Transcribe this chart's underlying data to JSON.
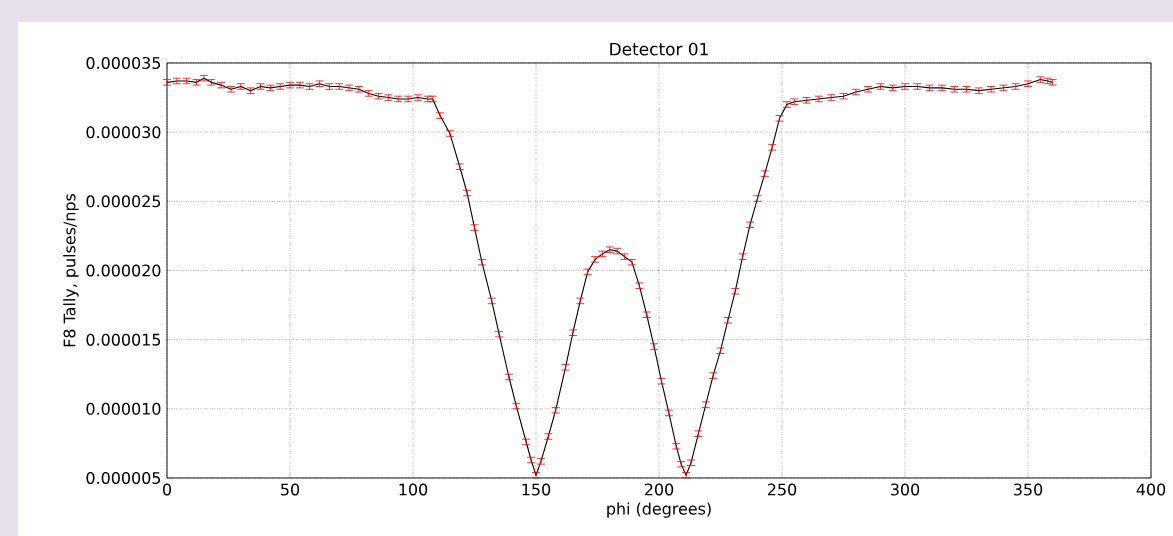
{
  "chart_data": {
    "type": "line",
    "title": "Detector 01",
    "xlabel": "phi (degrees)",
    "ylabel": "F8 Tally, pulses/nps",
    "x": [
      0,
      4,
      8,
      12,
      15,
      18,
      22,
      26,
      30,
      34,
      38,
      42,
      46,
      50,
      54,
      58,
      62,
      66,
      70,
      74,
      78,
      82,
      86,
      90,
      94,
      98,
      102,
      106,
      108,
      111,
      115,
      119,
      122,
      125,
      128,
      132,
      135,
      139,
      142,
      146,
      148,
      150,
      152,
      155,
      158,
      162,
      165,
      168,
      171,
      174,
      177,
      180,
      183,
      186,
      189,
      192,
      195,
      198,
      201,
      204,
      207,
      209,
      211,
      213,
      216,
      219,
      222,
      225,
      228,
      231,
      234,
      237,
      240,
      243,
      246,
      249,
      252,
      255,
      260,
      265,
      270,
      275,
      280,
      285,
      290,
      295,
      300,
      305,
      310,
      315,
      320,
      325,
      330,
      335,
      340,
      345,
      350,
      355,
      358,
      360
    ],
    "series": [
      {
        "color": "#000000",
        "line_style": "solid",
        "marker": "none",
        "values": [
          3.36e-05,
          3.37e-05,
          3.37e-05,
          3.36e-05,
          3.39e-05,
          3.36e-05,
          3.34e-05,
          3.31e-05,
          3.33e-05,
          3.3e-05,
          3.33e-05,
          3.32e-05,
          3.33e-05,
          3.34e-05,
          3.34e-05,
          3.33e-05,
          3.35e-05,
          3.33e-05,
          3.33e-05,
          3.32e-05,
          3.31e-05,
          3.28e-05,
          3.26e-05,
          3.25e-05,
          3.24e-05,
          3.24e-05,
          3.25e-05,
          3.24e-05,
          3.24e-05,
          3.12e-05,
          2.99e-05,
          2.75e-05,
          2.56e-05,
          2.31e-05,
          2.06e-05,
          1.78e-05,
          1.54e-05,
          1.23e-05,
          1.02e-05,
          7.6e-06,
          6.3e-06,
          5.2e-06,
          6.2e-06,
          8e-06,
          9.9e-06,
          1.3e-05,
          1.55e-05,
          1.78e-05,
          1.99e-05,
          2.08e-05,
          2.12e-05,
          2.15e-05,
          2.14e-05,
          2.1e-05,
          2.06e-05,
          1.89e-05,
          1.68e-05,
          1.45e-05,
          1.2e-05,
          9.7e-06,
          7.3e-06,
          6e-06,
          5.2e-06,
          6.1e-06,
          8.2e-06,
          1.03e-05,
          1.24e-05,
          1.42e-05,
          1.64e-05,
          1.85e-05,
          2.1e-05,
          2.33e-05,
          2.52e-05,
          2.7e-05,
          2.89e-05,
          3.1e-05,
          3.2e-05,
          3.22e-05,
          3.23e-05,
          3.24e-05,
          3.25e-05,
          3.26e-05,
          3.29e-05,
          3.31e-05,
          3.33e-05,
          3.32e-05,
          3.33e-05,
          3.33e-05,
          3.32e-05,
          3.32e-05,
          3.31e-05,
          3.31e-05,
          3.3e-05,
          3.31e-05,
          3.32e-05,
          3.33e-05,
          3.35e-05,
          3.38e-05,
          3.37e-05,
          3.36e-05
        ],
        "errors": [
          2e-07,
          2e-07,
          2e-07,
          2e-07,
          2e-07,
          2e-07,
          2e-07,
          2e-07,
          2e-07,
          2e-07,
          2e-07,
          2e-07,
          2e-07,
          2e-07,
          2e-07,
          2e-07,
          2e-07,
          2e-07,
          2e-07,
          2e-07,
          2e-07,
          2e-07,
          2e-07,
          2e-07,
          2e-07,
          2e-07,
          2e-07,
          2e-07,
          2e-07,
          2e-07,
          2e-07,
          2e-07,
          2e-07,
          2e-07,
          2e-07,
          2e-07,
          2e-07,
          2e-07,
          2e-07,
          2e-07,
          2e-07,
          2e-07,
          2e-07,
          2e-07,
          2e-07,
          2e-07,
          2e-07,
          2e-07,
          2e-07,
          2e-07,
          2e-07,
          2e-07,
          2e-07,
          2e-07,
          2e-07,
          2e-07,
          2e-07,
          2e-07,
          2e-07,
          2e-07,
          2e-07,
          2e-07,
          2e-07,
          2e-07,
          2e-07,
          2e-07,
          2e-07,
          2e-07,
          2e-07,
          2e-07,
          2e-07,
          2e-07,
          2e-07,
          2e-07,
          2e-07,
          2e-07,
          2e-07,
          2e-07,
          2e-07,
          2e-07,
          2e-07,
          2e-07,
          2e-07,
          2e-07,
          2e-07,
          2e-07,
          2e-07,
          2e-07,
          2e-07,
          2e-07,
          2e-07,
          2e-07,
          2e-07,
          2e-07,
          2e-07,
          2e-07,
          2e-07,
          2e-07,
          2e-07,
          2e-07
        ]
      }
    ],
    "xlim": [
      0,
      400
    ],
    "ylim": [
      5e-06,
      3.5e-05
    ],
    "xticks": [
      0,
      50,
      100,
      150,
      200,
      250,
      300,
      350,
      400
    ],
    "yticks": [
      {
        "value": 5e-06,
        "label": "0.000005"
      },
      {
        "value": 1e-05,
        "label": "0.000010"
      },
      {
        "value": 1.5e-05,
        "label": "0.000015"
      },
      {
        "value": 2e-05,
        "label": "0.000020"
      },
      {
        "value": 2.5e-05,
        "label": "0.000025"
      },
      {
        "value": 3e-05,
        "label": "0.000030"
      },
      {
        "value": 3.5e-05,
        "label": "0.000035"
      }
    ],
    "grid": true
  }
}
